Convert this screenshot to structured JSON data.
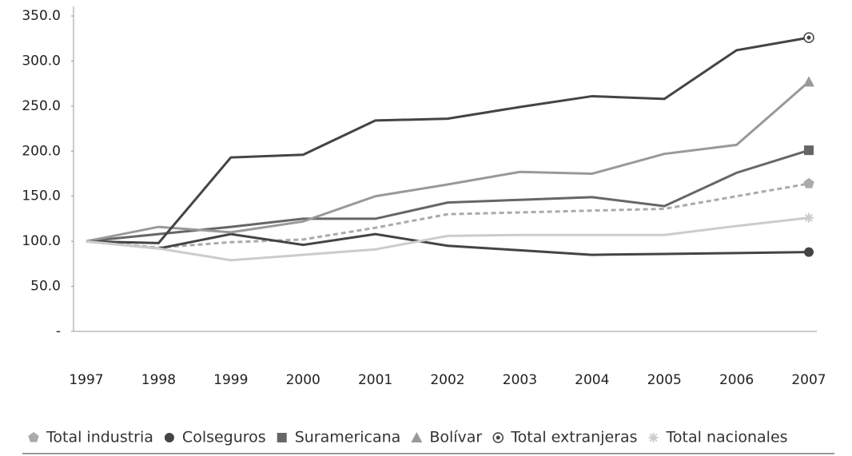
{
  "chart_data": {
    "type": "line",
    "categories": [
      "1997",
      "1998",
      "1999",
      "2000",
      "2001",
      "2002",
      "2003",
      "2004",
      "2005",
      "2006",
      "2007"
    ],
    "ylim": [
      0,
      350
    ],
    "yticks": [
      {
        "value": 0,
        "label": "-"
      },
      {
        "value": 50,
        "label": "50.0"
      },
      {
        "value": 100,
        "label": "100.0"
      },
      {
        "value": 150,
        "label": "150.0"
      },
      {
        "value": 200,
        "label": "200.0"
      },
      {
        "value": 250,
        "label": "250.0"
      },
      {
        "value": 300,
        "label": "300.0"
      },
      {
        "value": 350,
        "label": "350.0"
      }
    ],
    "grid": false,
    "legend": "bottom",
    "series": [
      {
        "name": "Total industria",
        "color": "#aaaaaa",
        "dash": true,
        "marker": "pentagon",
        "values": [
          100,
          93,
          99,
          102,
          115,
          130,
          132,
          134,
          136,
          150,
          164
        ]
      },
      {
        "name": "Colseguros",
        "color": "#444444",
        "dash": false,
        "marker": "circle",
        "values": [
          100,
          92,
          108,
          96,
          108,
          95,
          90,
          85,
          86,
          87,
          88
        ]
      },
      {
        "name": "Suramericana",
        "color": "#666666",
        "dash": false,
        "marker": "square",
        "values": [
          100,
          108,
          116,
          125,
          125,
          143,
          146,
          149,
          139,
          176,
          201
        ]
      },
      {
        "name": "Bolívar",
        "color": "#999999",
        "dash": false,
        "marker": "triangle",
        "values": [
          100,
          116,
          110,
          122,
          150,
          163,
          177,
          175,
          197,
          207,
          277
        ]
      },
      {
        "name": "Total extranjeras",
        "color": "#444444",
        "dash": false,
        "marker": "ring",
        "values": [
          100,
          98,
          193,
          196,
          234,
          236,
          249,
          261,
          258,
          312,
          326
        ]
      },
      {
        "name": "Total nacionales",
        "color": "#cccccc",
        "dash": false,
        "marker": "star",
        "values": [
          100,
          92,
          79,
          85,
          91,
          106,
          107,
          107,
          107,
          117,
          126
        ]
      }
    ]
  }
}
